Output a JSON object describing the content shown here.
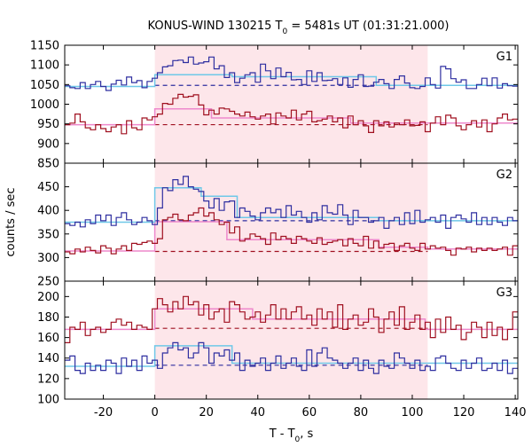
{
  "chart_data": {
    "type": "line",
    "title_parts": {
      "prefix": "KONUS-WIND 130215 T",
      "sub": "0",
      "suffix": " = 5481s UT (01:31:21.000)"
    },
    "xlabel_parts": {
      "prefix": "T - T",
      "sub": "0",
      "suffix": ", s"
    },
    "ylabel": "counts / sec",
    "xlim": [
      -35,
      141
    ],
    "xticks": [
      -20,
      0,
      20,
      40,
      60,
      80,
      100,
      120,
      140
    ],
    "highlight_interval": [
      0,
      106
    ],
    "colors": {
      "blue_step": "#2f2fa0",
      "blue_fit": "#6fc8e8",
      "red_step": "#a01020",
      "red_fit": "#ee88cc",
      "highlight": "#fde6ea",
      "background_dashed_blue": "#2f2fa0",
      "background_dashed_red": "#a01020"
    },
    "panels": [
      {
        "label": "G1",
        "ylim": [
          850,
          1150
        ],
        "yticks": [
          850,
          900,
          950,
          1000,
          1050,
          1100,
          1150
        ],
        "blue_background": 1048,
        "red_background": 948,
        "blue_fit": [
          [
            -35,
            1045
          ],
          [
            0,
            1045
          ],
          [
            0,
            1075
          ],
          [
            30,
            1075
          ],
          [
            30,
            1070
          ],
          [
            86,
            1070
          ],
          [
            86,
            1048
          ],
          [
            141,
            1048
          ]
        ],
        "red_fit": [
          [
            -35,
            948
          ],
          [
            0,
            948
          ],
          [
            0,
            988
          ],
          [
            22,
            988
          ],
          [
            22,
            965
          ],
          [
            76,
            965
          ],
          [
            76,
            952
          ],
          [
            141,
            952
          ]
        ],
        "blue_series": [
          1047,
          1042,
          1040,
          1055,
          1040,
          1050,
          1058,
          1045,
          1035,
          1051,
          1061,
          1049,
          1069,
          1055,
          1060,
          1042,
          1058,
          1066,
          1080,
          1095,
          1098,
          1111,
          1112,
          1106,
          1120,
          1102,
          1105,
          1108,
          1120,
          1090,
          1098,
          1068,
          1080,
          1055,
          1066,
          1075,
          1080,
          1056,
          1102,
          1085,
          1065,
          1092,
          1070,
          1081,
          1062,
          1063,
          1050,
          1085,
          1058,
          1080,
          1060,
          1061,
          1065,
          1050,
          1067,
          1043,
          1063,
          1075,
          1045,
          1046,
          1056,
          1063,
          1052,
          1040,
          1063,
          1072,
          1054,
          1042,
          1040,
          1045,
          1067,
          1050,
          1041,
          1096,
          1090,
          1065,
          1056,
          1062,
          1040,
          1040,
          1050,
          1066,
          1047,
          1067,
          1041,
          1052,
          1047,
          1046
        ],
        "red_series": [
          948,
          952,
          975,
          955,
          940,
          935,
          948,
          938,
          930,
          942,
          948,
          925,
          958,
          940,
          935,
          965,
          960,
          968,
          975,
          1002,
          1000,
          1015,
          1025,
          1018,
          1020,
          1024,
          998,
          973,
          985,
          975,
          990,
          988,
          982,
          975,
          970,
          980,
          968,
          962,
          970,
          975,
          950,
          978,
          970,
          965,
          985,
          960,
          975,
          982,
          955,
          958,
          962,
          970,
          955,
          965,
          940,
          970,
          948,
          958,
          945,
          928,
          958,
          945,
          955,
          942,
          952,
          948,
          960,
          945,
          946,
          955,
          930,
          952,
          968,
          948,
          972,
          965,
          945,
          935,
          948,
          958,
          942,
          960,
          930,
          950,
          965,
          975,
          960,
          962
        ]
      },
      {
        "label": "G2",
        "ylim": [
          250,
          500
        ],
        "yticks": [
          250,
          300,
          350,
          400,
          450
        ],
        "blue_background": 378,
        "red_background": 313,
        "blue_fit": [
          [
            -35,
            375
          ],
          [
            0,
            375
          ],
          [
            0,
            448
          ],
          [
            18,
            448
          ],
          [
            18,
            430
          ],
          [
            32,
            430
          ],
          [
            32,
            385
          ],
          [
            87,
            385
          ],
          [
            87,
            378
          ],
          [
            141,
            378
          ]
        ],
        "red_fit": [
          [
            -35,
            314
          ],
          [
            0,
            314
          ],
          [
            0,
            376
          ],
          [
            28,
            376
          ],
          [
            28,
            338
          ],
          [
            87,
            338
          ],
          [
            87,
            322
          ],
          [
            106,
            322
          ],
          [
            106,
            318
          ],
          [
            141,
            318
          ]
        ],
        "blue_series": [
          372,
          368,
          375,
          365,
          380,
          372,
          390,
          378,
          390,
          368,
          385,
          395,
          380,
          370,
          375,
          385,
          378,
          370,
          405,
          448,
          442,
          465,
          455,
          472,
          450,
          445,
          440,
          420,
          405,
          425,
          400,
          418,
          420,
          385,
          405,
          398,
          388,
          380,
          395,
          405,
          395,
          402,
          385,
          410,
          390,
          398,
          385,
          375,
          395,
          380,
          410,
          395,
          392,
          412,
          390,
          370,
          400,
          385,
          385,
          375,
          378,
          385,
          362,
          378,
          385,
          370,
          395,
          372,
          400,
          375,
          380,
          385,
          375,
          390,
          362,
          385,
          390,
          382,
          375,
          395,
          370,
          385,
          370,
          385,
          375,
          368,
          385,
          378
        ],
        "red_series": [
          312,
          308,
          318,
          312,
          322,
          315,
          310,
          325,
          320,
          308,
          318,
          325,
          315,
          330,
          328,
          332,
          335,
          330,
          340,
          380,
          385,
          392,
          380,
          378,
          390,
          395,
          405,
          388,
          395,
          380,
          370,
          375,
          352,
          365,
          335,
          340,
          350,
          345,
          340,
          328,
          352,
          338,
          345,
          340,
          330,
          345,
          340,
          335,
          330,
          342,
          328,
          332,
          335,
          338,
          325,
          340,
          330,
          325,
          345,
          320,
          335,
          320,
          328,
          330,
          315,
          325,
          330,
          320,
          315,
          330,
          318,
          325,
          320,
          322,
          315,
          305,
          320,
          318,
          322,
          312,
          320,
          315,
          320,
          315,
          318,
          322,
          305,
          325
        ]
      },
      {
        "label": "G3",
        "ylim": [
          100,
          215
        ],
        "yticks": [
          100,
          120,
          140,
          160,
          180,
          200
        ],
        "blue_background": 133,
        "red_background": 169,
        "blue_fit": [
          [
            -35,
            132
          ],
          [
            0,
            132
          ],
          [
            0,
            152
          ],
          [
            30,
            152
          ],
          [
            30,
            135
          ],
          [
            141,
            135
          ]
        ],
        "red_fit": [
          [
            -35,
            168
          ],
          [
            0,
            168
          ],
          [
            0,
            188
          ],
          [
            38,
            188
          ],
          [
            38,
            178
          ],
          [
            105,
            178
          ],
          [
            105,
            168
          ],
          [
            141,
            168
          ]
        ],
        "blue_series": [
          138,
          142,
          128,
          125,
          135,
          128,
          133,
          128,
          138,
          135,
          125,
          140,
          132,
          138,
          128,
          142,
          135,
          138,
          130,
          145,
          150,
          155,
          148,
          150,
          140,
          145,
          155,
          150,
          135,
          145,
          142,
          148,
          138,
          145,
          128,
          138,
          132,
          135,
          140,
          128,
          135,
          142,
          130,
          135,
          140,
          132,
          128,
          148,
          132,
          145,
          150,
          140,
          138,
          135,
          130,
          135,
          140,
          128,
          138,
          130,
          125,
          138,
          132,
          130,
          145,
          140,
          135,
          130,
          138,
          128,
          132,
          128,
          140,
          142,
          135,
          130,
          128,
          138,
          130,
          135,
          140,
          128,
          130,
          135,
          128,
          138,
          125,
          130
        ],
        "red_series": [
          155,
          170,
          168,
          175,
          162,
          168,
          170,
          165,
          168,
          175,
          178,
          172,
          175,
          168,
          172,
          170,
          168,
          188,
          198,
          192,
          185,
          195,
          188,
          200,
          192,
          195,
          182,
          192,
          178,
          185,
          188,
          175,
          195,
          192,
          185,
          178,
          180,
          185,
          175,
          182,
          192,
          178,
          188,
          178,
          185,
          190,
          178,
          182,
          172,
          188,
          178,
          185,
          170,
          192,
          168,
          178,
          182,
          172,
          175,
          188,
          180,
          165,
          178,
          185,
          172,
          190,
          168,
          175,
          182,
          168,
          175,
          160,
          178,
          165,
          180,
          168,
          172,
          158,
          165,
          175,
          170,
          160,
          175,
          162,
          170,
          158,
          168,
          185
        ]
      }
    ]
  }
}
